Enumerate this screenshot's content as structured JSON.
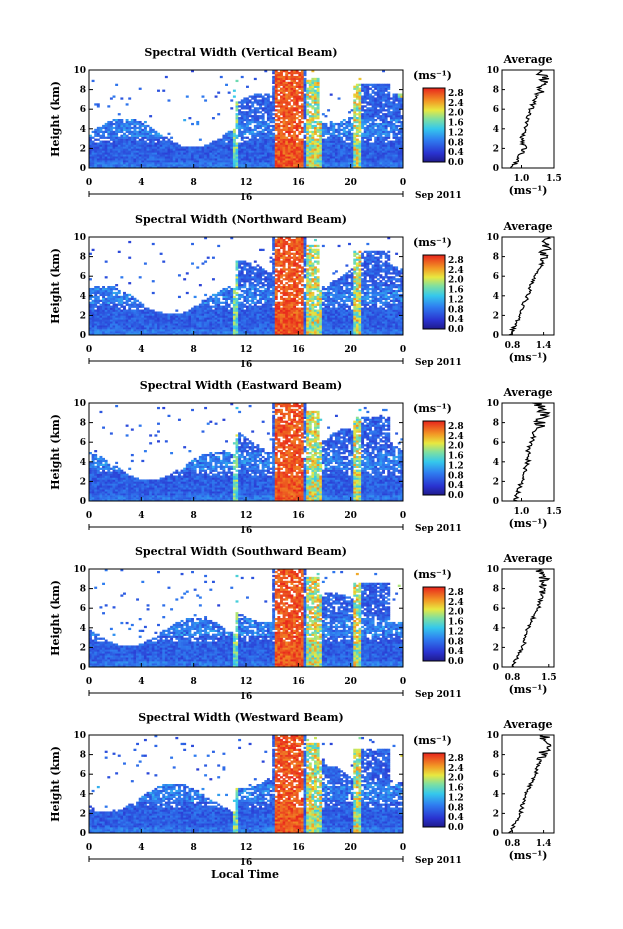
{
  "figure": {
    "xlabel": "Local Time",
    "date_label": "Sep 2011",
    "day_label": "16",
    "colorbar_unit": "(ms⁻¹)",
    "colorbar_ticks": [
      "2.8",
      "2.4",
      "2.0",
      "1.6",
      "1.2",
      "0.8",
      "0.4",
      "0.0"
    ],
    "average_title": "Average",
    "average_unit": "(ms⁻¹)",
    "y_label": "Height (km)",
    "colors": {
      "low": "#2a33b8",
      "mid": "#35c0e8",
      "high": "#e8241c"
    }
  },
  "chart_data": [
    {
      "type": "heatmap",
      "title": "Spectral Width (Vertical Beam)",
      "ylabel": "Height (km)",
      "xlabel": "Local Time",
      "x_ticks": [
        "0",
        "4",
        "8",
        "12",
        "16",
        "20",
        "0"
      ],
      "y_ticks": [
        "10",
        "8",
        "6",
        "4",
        "2",
        "0"
      ],
      "xlim": [
        0,
        24
      ],
      "ylim": [
        0,
        10
      ],
      "colorbar": {
        "min": 0.0,
        "max": 2.8,
        "unit": "ms-1"
      },
      "average_profile": {
        "title": "Average",
        "unit": "ms-1",
        "xlim": [
          0.7,
          1.5
        ],
        "x_ticks": [
          "1.0",
          "1.5"
        ],
        "y_ticks": [
          "10",
          "8",
          "6",
          "4",
          "2",
          "0"
        ],
        "heights": [
          0,
          1,
          2,
          3,
          4,
          5,
          6,
          7,
          8,
          9,
          10
        ],
        "values": [
          0.85,
          0.95,
          1.05,
          1.0,
          1.05,
          1.1,
          1.15,
          1.2,
          1.3,
          1.35,
          1.3
        ]
      }
    },
    {
      "type": "heatmap",
      "title": "Spectral Width (Northward Beam)",
      "ylabel": "Height (km)",
      "xlabel": "Local Time",
      "x_ticks": [
        "0",
        "4",
        "8",
        "12",
        "16",
        "20",
        "0"
      ],
      "y_ticks": [
        "10",
        "8",
        "6",
        "4",
        "2",
        "0"
      ],
      "xlim": [
        0,
        24
      ],
      "ylim": [
        0,
        10
      ],
      "colorbar": {
        "min": 0.0,
        "max": 2.8,
        "unit": "ms-1"
      },
      "average_profile": {
        "title": "Average",
        "unit": "ms-1",
        "xlim": [
          0.6,
          1.6
        ],
        "x_ticks": [
          "0.8",
          "1.4"
        ],
        "y_ticks": [
          "10",
          "8",
          "6",
          "4",
          "2",
          "0"
        ],
        "heights": [
          0,
          1,
          2,
          3,
          4,
          5,
          6,
          7,
          8,
          9,
          10
        ],
        "values": [
          0.75,
          0.85,
          0.95,
          1.0,
          1.1,
          1.15,
          1.25,
          1.35,
          1.4,
          1.45,
          1.4
        ]
      }
    },
    {
      "type": "heatmap",
      "title": "Spectral Width (Eastward Beam)",
      "ylabel": "Height (km)",
      "xlabel": "Local Time",
      "x_ticks": [
        "0",
        "4",
        "8",
        "12",
        "16",
        "20",
        "0"
      ],
      "y_ticks": [
        "10",
        "8",
        "6",
        "4",
        "2",
        "0"
      ],
      "xlim": [
        0,
        24
      ],
      "ylim": [
        0,
        10
      ],
      "colorbar": {
        "min": 0.0,
        "max": 2.8,
        "unit": "ms-1"
      },
      "average_profile": {
        "title": "Average",
        "unit": "ms-1",
        "xlim": [
          0.7,
          1.5
        ],
        "x_ticks": [
          "1.0",
          "1.5"
        ],
        "y_ticks": [
          "10",
          "8",
          "6",
          "4",
          "2",
          "0"
        ],
        "heights": [
          0,
          1,
          2,
          3,
          4,
          5,
          6,
          7,
          8,
          9,
          10
        ],
        "values": [
          0.9,
          0.95,
          1.0,
          1.05,
          1.1,
          1.1,
          1.15,
          1.2,
          1.3,
          1.35,
          1.25
        ]
      }
    },
    {
      "type": "heatmap",
      "title": "Spectral Width (Southward Beam)",
      "ylabel": "Height (km)",
      "xlabel": "Local Time",
      "x_ticks": [
        "0",
        "4",
        "8",
        "12",
        "16",
        "20",
        "0"
      ],
      "y_ticks": [
        "10",
        "8",
        "6",
        "4",
        "2",
        "0"
      ],
      "xlim": [
        0,
        24
      ],
      "ylim": [
        0,
        10
      ],
      "colorbar": {
        "min": 0.0,
        "max": 2.8,
        "unit": "ms-1"
      },
      "average_profile": {
        "title": "Average",
        "unit": "ms-1",
        "xlim": [
          0.6,
          1.6
        ],
        "x_ticks": [
          "0.8",
          "1.5"
        ],
        "y_ticks": [
          "10",
          "8",
          "6",
          "4",
          "2",
          "0"
        ],
        "heights": [
          0,
          1,
          2,
          3,
          4,
          5,
          6,
          7,
          8,
          9,
          10
        ],
        "values": [
          0.8,
          0.9,
          1.0,
          1.05,
          1.1,
          1.2,
          1.3,
          1.35,
          1.4,
          1.4,
          1.35
        ]
      }
    },
    {
      "type": "heatmap",
      "title": "Spectral Width (Westward Beam)",
      "ylabel": "Height (km)",
      "xlabel": "Local Time",
      "x_ticks": [
        "0",
        "4",
        "8",
        "12",
        "16",
        "20",
        "0"
      ],
      "y_ticks": [
        "10",
        "8",
        "6",
        "4",
        "2",
        "0"
      ],
      "xlim": [
        0,
        24
      ],
      "ylim": [
        0,
        10
      ],
      "colorbar": {
        "min": 0.0,
        "max": 2.8,
        "unit": "ms-1"
      },
      "average_profile": {
        "title": "Average",
        "unit": "ms-1",
        "xlim": [
          0.6,
          1.6
        ],
        "x_ticks": [
          "0.8",
          "1.4"
        ],
        "y_ticks": [
          "10",
          "8",
          "6",
          "4",
          "2",
          "0"
        ],
        "heights": [
          0,
          1,
          2,
          3,
          4,
          5,
          6,
          7,
          8,
          9,
          10
        ],
        "values": [
          0.75,
          0.85,
          0.95,
          1.0,
          1.05,
          1.15,
          1.25,
          1.3,
          1.4,
          1.45,
          1.4
        ]
      }
    }
  ]
}
